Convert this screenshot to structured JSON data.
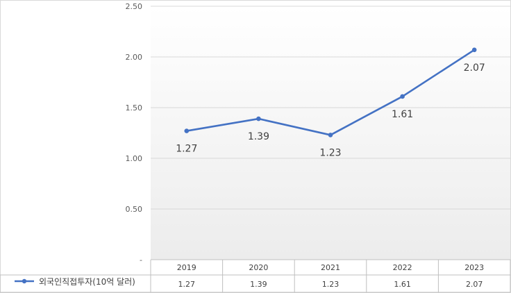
{
  "chart_data": {
    "type": "line",
    "title": "",
    "xlabel": "",
    "ylabel": "",
    "categories": [
      "2019",
      "2020",
      "2021",
      "2022",
      "2023"
    ],
    "series": [
      {
        "name": "외국인직접투자(10억 달러)",
        "values": [
          1.27,
          1.39,
          1.23,
          1.61,
          2.07
        ],
        "color": "#4472C4"
      }
    ],
    "ylim": [
      0,
      2.5
    ],
    "yticks": [
      "-",
      "0.50",
      "1.00",
      "1.50",
      "2.00",
      "2.50"
    ],
    "data_labels": [
      "1.27",
      "1.39",
      "1.23",
      "1.61",
      "2.07"
    ],
    "grid": true,
    "legend": "data-table",
    "plot_background": "gradient-white-to-light-gray"
  }
}
